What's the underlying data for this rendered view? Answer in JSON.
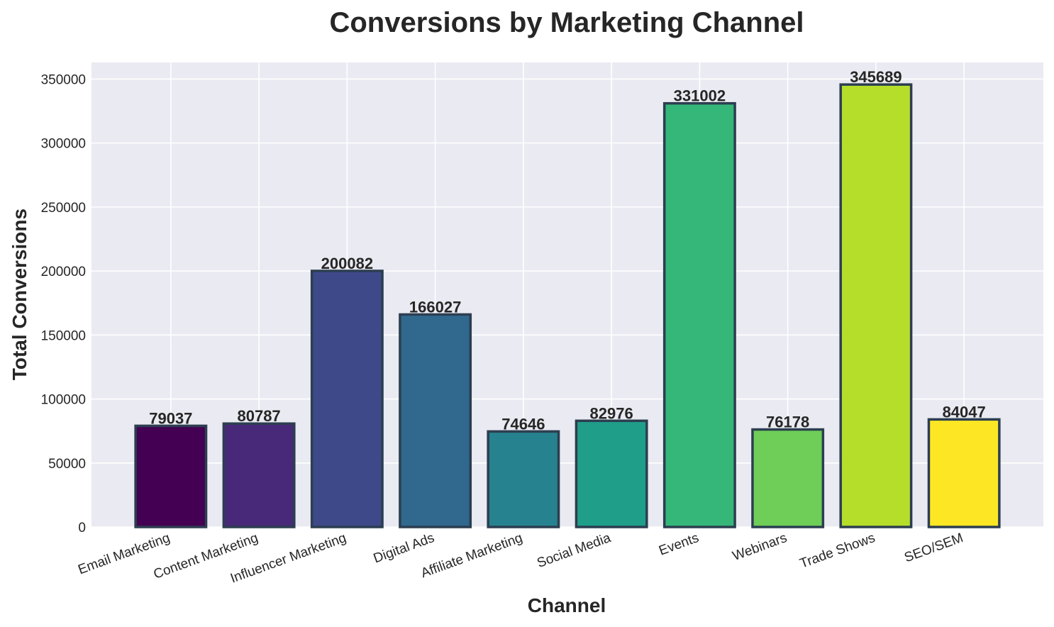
{
  "chart_data": {
    "type": "bar",
    "title": "Conversions by Marketing Channel",
    "xlabel": "Channel",
    "ylabel": "Total Conversions",
    "categories": [
      "Email Marketing",
      "Content Marketing",
      "Influencer Marketing",
      "Digital Ads",
      "Affiliate Marketing",
      "Social Media",
      "Events",
      "Webinars",
      "Trade Shows",
      "SEO/SEM"
    ],
    "values": [
      79037,
      80787,
      200082,
      166027,
      74646,
      82976,
      331002,
      76178,
      345689,
      84047
    ],
    "colors": [
      "#440154",
      "#482878",
      "#3e4989",
      "#31688e",
      "#26828e",
      "#1f9e89",
      "#35b779",
      "#6ece58",
      "#b5de2b",
      "#fde725"
    ],
    "bar_edge_color": "#2c3e50",
    "plot_background": "#eaeaf2",
    "grid": true,
    "yticks": [
      0,
      50000,
      100000,
      150000,
      200000,
      250000,
      300000,
      350000
    ],
    "ylim": [
      0,
      362973
    ]
  }
}
